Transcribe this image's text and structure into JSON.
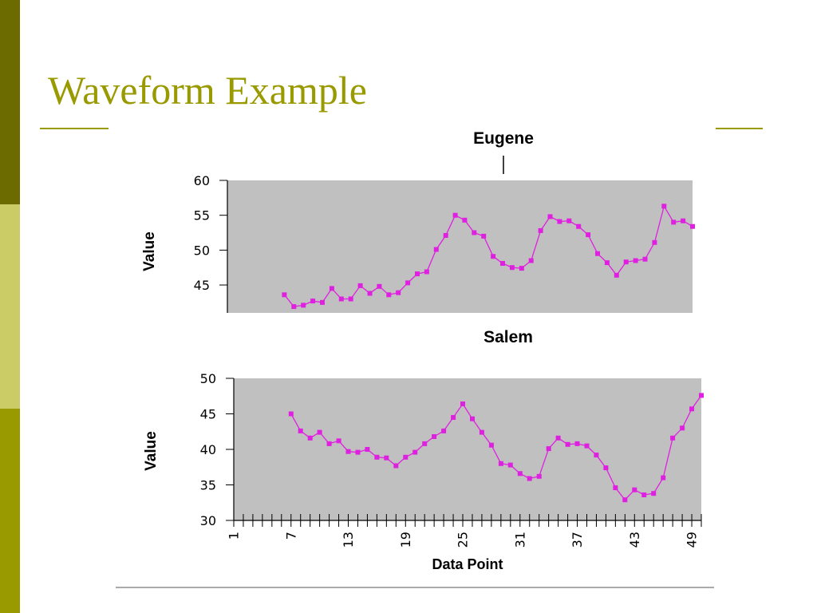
{
  "slide": {
    "title": "Waveform Example"
  },
  "colors": {
    "accent_dark": "#6b6b00",
    "accent_light": "#cccc66",
    "accent": "#999900",
    "plot_bg": "#c0c0c0",
    "series": "#e020e0"
  },
  "chart_data": [
    {
      "type": "line",
      "title": "Eugene",
      "xlabel": "",
      "ylabel": "Value",
      "ylim": [
        41,
        60
      ],
      "yticks": [
        45,
        50,
        55,
        60
      ],
      "x": [
        7,
        8,
        9,
        10,
        11,
        12,
        13,
        14,
        15,
        16,
        17,
        18,
        19,
        20,
        21,
        22,
        23,
        24,
        25,
        26,
        27,
        28,
        29,
        30,
        31,
        32,
        33,
        34,
        35,
        36,
        37,
        38,
        39,
        40,
        41,
        42,
        43,
        44,
        45,
        46,
        47,
        48,
        49,
        50
      ],
      "series": [
        {
          "values": [
            43.6,
            41.9,
            42.1,
            42.7,
            42.5,
            44.5,
            43.0,
            43.0,
            44.9,
            43.8,
            44.8,
            43.6,
            43.9,
            45.3,
            46.6,
            46.9,
            50.1,
            52.1,
            55.0,
            54.3,
            52.5,
            52.0,
            49.1,
            48.1,
            47.5,
            47.4,
            48.5,
            52.8,
            54.8,
            54.1,
            54.2,
            53.4,
            52.2,
            49.5,
            48.2,
            46.4,
            48.3,
            48.5,
            48.7,
            51.1,
            56.3,
            54.0,
            54.2,
            53.4
          ]
        }
      ]
    },
    {
      "type": "line",
      "title": "Salem",
      "xlabel": "Data Point",
      "ylabel": "Value",
      "ylim": [
        30,
        50
      ],
      "yticks": [
        30,
        35,
        40,
        45,
        50
      ],
      "xticks": [
        1,
        7,
        13,
        19,
        25,
        31,
        37,
        43,
        49
      ],
      "x": [
        7,
        8,
        9,
        10,
        11,
        12,
        13,
        14,
        15,
        16,
        17,
        18,
        19,
        20,
        21,
        22,
        23,
        24,
        25,
        26,
        27,
        28,
        29,
        30,
        31,
        32,
        33,
        34,
        35,
        36,
        37,
        38,
        39,
        40,
        41,
        42,
        43,
        44,
        45,
        46,
        47,
        48,
        49,
        50
      ],
      "series": [
        {
          "values": [
            45.0,
            42.6,
            41.6,
            42.4,
            40.8,
            41.2,
            39.7,
            39.6,
            40.0,
            38.9,
            38.8,
            37.7,
            38.9,
            39.6,
            40.8,
            41.8,
            42.6,
            44.5,
            46.4,
            44.3,
            42.4,
            40.6,
            38.0,
            37.8,
            36.6,
            35.9,
            36.2,
            40.1,
            41.6,
            40.7,
            40.8,
            40.5,
            39.2,
            37.4,
            34.6,
            32.9,
            34.3,
            33.6,
            33.8,
            36.0,
            41.6,
            43.0,
            45.7,
            47.6
          ]
        }
      ]
    }
  ]
}
